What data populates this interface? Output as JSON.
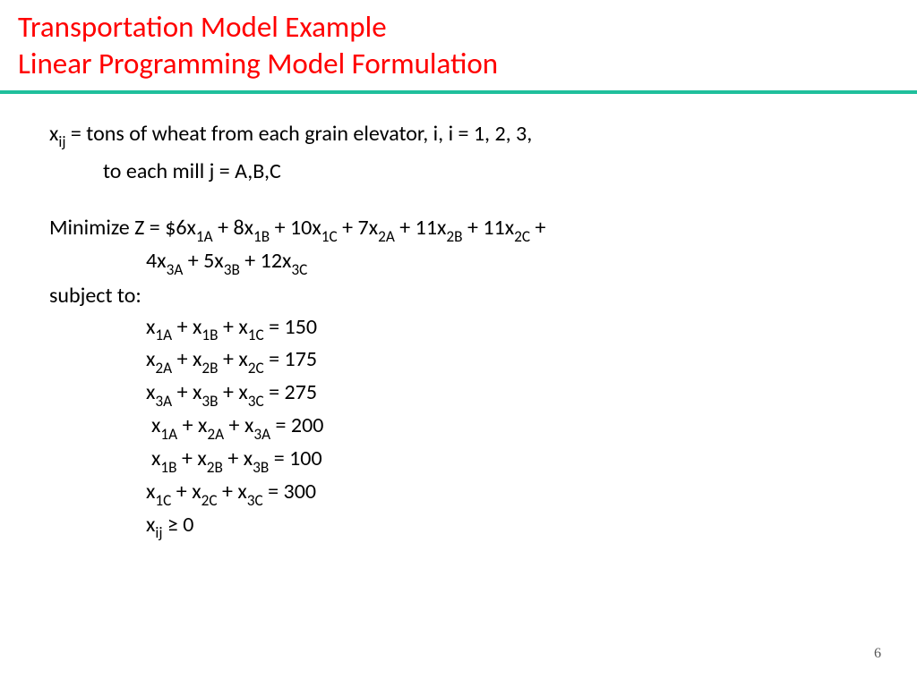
{
  "title": {
    "line1": "Transportation Model Example",
    "line2": "Linear Programming Model Formulation",
    "color": "#ff0000",
    "fontsize": 33
  },
  "divider_color": "#1fbf9c",
  "body": {
    "text_color": "#000000",
    "fontsize": 24,
    "variable_def": {
      "prefix": "x",
      "sub": "ij",
      "line1_rest": " = tons of wheat from each grain elevator, i, i = 1, 2, 3,",
      "line2": "to each mill j = A,B,C"
    },
    "objective": {
      "label": "Minimize Z = ",
      "terms_line1": [
        {
          "coef": "$6",
          "sub": "1A"
        },
        {
          "coef": "8",
          "sub": "1B"
        },
        {
          "coef": "10",
          "sub": "1C"
        },
        {
          "coef": "7",
          "sub": "2A"
        },
        {
          "coef": "11",
          "sub": "2B"
        },
        {
          "coef": "11",
          "sub": "2C"
        }
      ],
      "line1_trailing": " +",
      "terms_line2": [
        {
          "coef": "4",
          "sub": "3A"
        },
        {
          "coef": "5",
          "sub": "3B"
        },
        {
          "coef": "12",
          "sub": "3C"
        }
      ]
    },
    "subject_label": "subject to:",
    "constraints": [
      {
        "terms": [
          "1A",
          "1B",
          "1C"
        ],
        "rhs": "= 150",
        "pad": 0
      },
      {
        "terms": [
          "2A",
          "2B",
          "2C"
        ],
        "rhs": "= 175",
        "pad": 0
      },
      {
        "terms": [
          "3A",
          "3B",
          "3C"
        ],
        "rhs": "= 275",
        "pad": 0
      },
      {
        "terms": [
          "1A",
          "2A",
          "3A"
        ],
        "rhs": "= 200",
        "pad": 6
      },
      {
        "terms": [
          "1B",
          "2B",
          "3B"
        ],
        "rhs": "= 100",
        "pad": 6
      },
      {
        "terms": [
          "1C",
          "2C",
          "3C"
        ],
        "rhs": "= 300",
        "pad": 0
      }
    ],
    "nonneg": {
      "var": "x",
      "sub": "ij",
      "rel": " ≥ 0",
      "pad": 0
    }
  },
  "page_number": "6"
}
